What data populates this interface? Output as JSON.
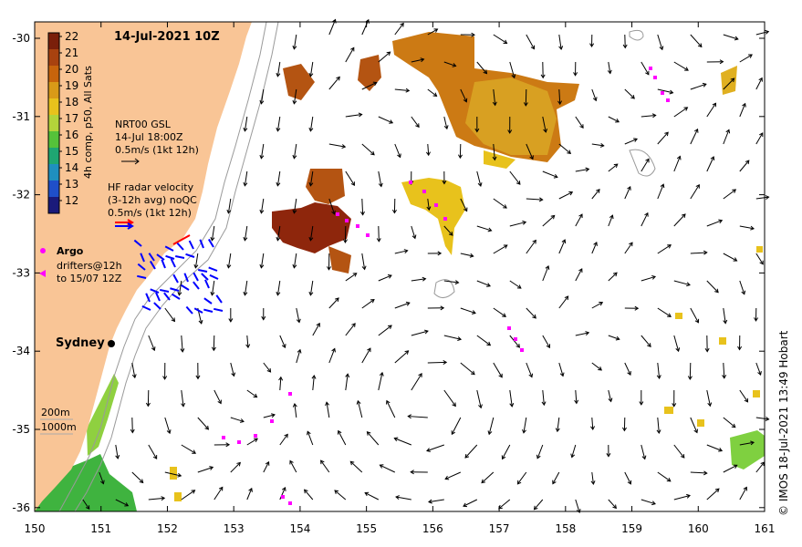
{
  "title": "14-Jul-2021 10Z",
  "credit": "© IMOS 18-Jul-2021 13:49 Hobart",
  "colorbar": {
    "label": "4h comp, p50, All Sats",
    "ticks": [
      "22",
      "21",
      "20",
      "19",
      "18",
      "17",
      "16",
      "15",
      "14",
      "13",
      "12"
    ],
    "colors": [
      "#7a1f0a",
      "#a8420f",
      "#c8640c",
      "#d99a18",
      "#e8c21c",
      "#b3d43a",
      "#55c23a",
      "#1fa672",
      "#1f8fbf",
      "#1f4fc9",
      "#1a1a7a"
    ]
  },
  "legend": {
    "gsl_lines": [
      "NRT00 GSL",
      "14-Jul 18:00Z",
      "0.5m/s (1kt 12h)"
    ],
    "hf_lines": [
      "HF radar velocity",
      "(3-12h avg) noQC",
      "0.5m/s (1kt 12h)"
    ],
    "argo_label": "Argo",
    "drifter_lines": [
      "drifters@12h",
      "to 15/07 12Z"
    ],
    "depth_lines": [
      "200m",
      "1000m"
    ]
  },
  "place_label": "Sydney",
  "axes": {
    "x_ticks": [
      "150",
      "151",
      "152",
      "153",
      "154",
      "155",
      "156",
      "157",
      "158",
      "159",
      "160",
      "161"
    ],
    "y_ticks": [
      "-30",
      "-31",
      "-32",
      "-33",
      "-34",
      "-35",
      "-36"
    ]
  },
  "colors": {
    "land": "#f9c596",
    "argo": "#ff00ff",
    "hf_blue": "#0000ff",
    "hf_red": "#ff0000",
    "arrow": "#000000"
  }
}
